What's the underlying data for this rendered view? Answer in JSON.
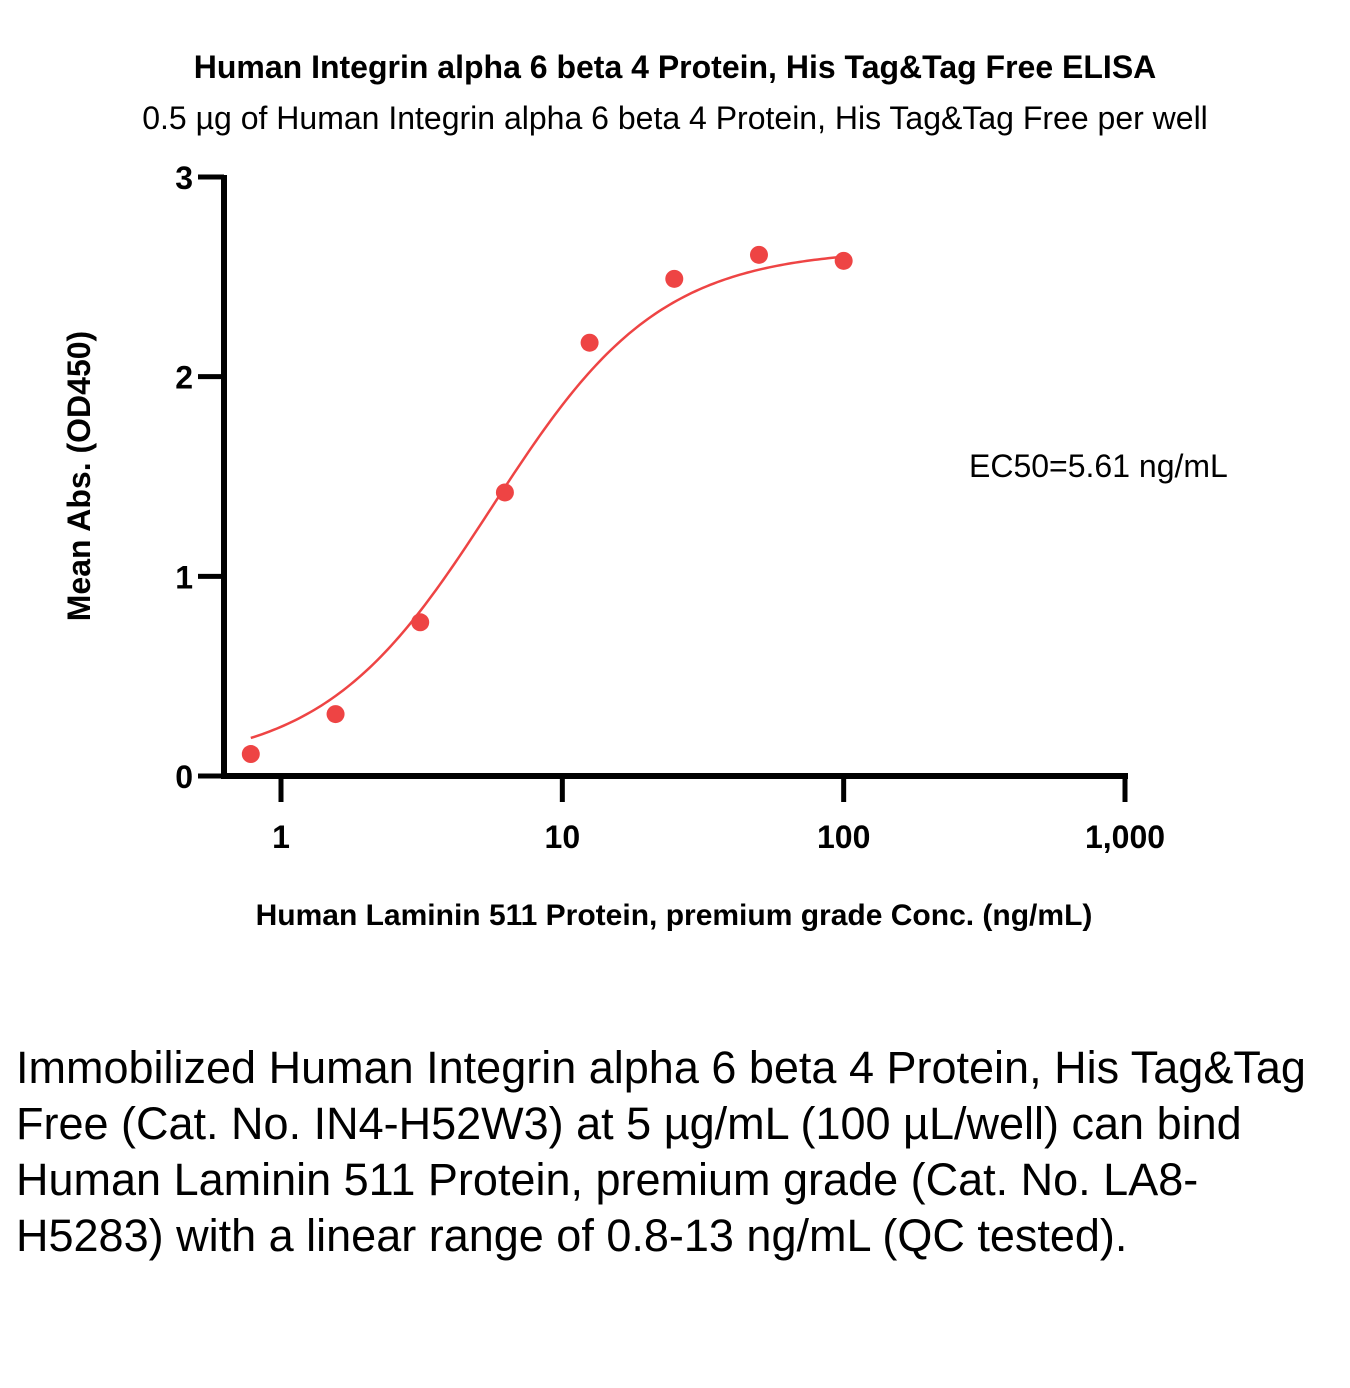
{
  "chart_data": {
    "type": "scatter",
    "title": "Human Integrin alpha 6 beta 4 Protein, His Tag&Tag Free ELISA",
    "subtitle": "0.5 µg of Human Integrin alpha 6 beta 4 Protein, His Tag&Tag Free per well",
    "xlabel": "Human Laminin 511 Protein, premium grade Conc. (ng/mL)",
    "ylabel": "Mean Abs. (OD450)",
    "x_scale": "log",
    "xlim": [
      0.6,
      1000
    ],
    "ylim": [
      0,
      3
    ],
    "x_ticks": [
      1,
      10,
      100,
      1000
    ],
    "x_tick_labels": [
      "1",
      "10",
      "100",
      "1,000"
    ],
    "y_ticks": [
      0,
      1,
      2,
      3
    ],
    "y_tick_labels": [
      "0",
      "1",
      "2",
      "3"
    ],
    "grid": false,
    "annotation": "EC50=5.61 ng/mL",
    "color": "#ee4444",
    "series": [
      {
        "x": [
          0.781,
          1.563,
          3.125,
          6.25,
          12.5,
          25,
          50,
          100
        ],
        "y": [
          0.11,
          0.31,
          0.77,
          1.42,
          2.17,
          2.49,
          2.61,
          2.58
        ]
      }
    ],
    "fit": {
      "model": "4PL",
      "bottom": 0.05,
      "top": 2.64,
      "ec50": 5.61,
      "hill": 1.45
    }
  },
  "caption": "Immobilized Human Integrin alpha 6 beta 4 Protein, His Tag&Tag Free (Cat. No. IN4-H52W3) at 5 µg/mL (100 µL/well) can bind Human Laminin 511 Protein, premium grade (Cat. No. LA8-H5283) with a linear range of 0.8-13 ng/mL (QC tested)."
}
